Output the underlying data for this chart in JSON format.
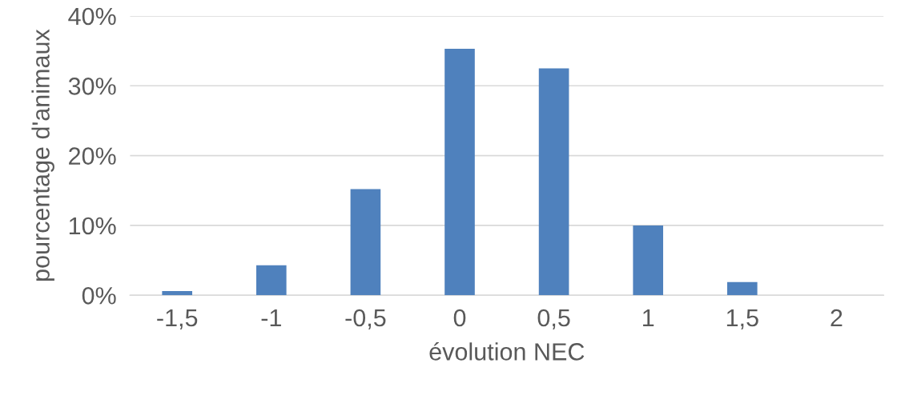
{
  "chart_data": {
    "type": "bar",
    "xlabel": "évolution NEC",
    "ylabel": "pourcentage d'animaux",
    "categories": [
      "-1,5",
      "-1",
      "-0,5",
      "0",
      "0,5",
      "1",
      "1,5",
      "2"
    ],
    "values": [
      0.6,
      4.3,
      15.2,
      35.3,
      32.5,
      10.0,
      1.9,
      0
    ],
    "color": "#4f81bd",
    "ylim": [
      0,
      40
    ],
    "yticks": [
      {
        "value": 0,
        "label": "0%"
      },
      {
        "value": 10,
        "label": "10%"
      },
      {
        "value": 20,
        "label": "20%"
      },
      {
        "value": 30,
        "label": "30%"
      },
      {
        "value": 40,
        "label": "40%"
      }
    ],
    "grid": "y"
  }
}
